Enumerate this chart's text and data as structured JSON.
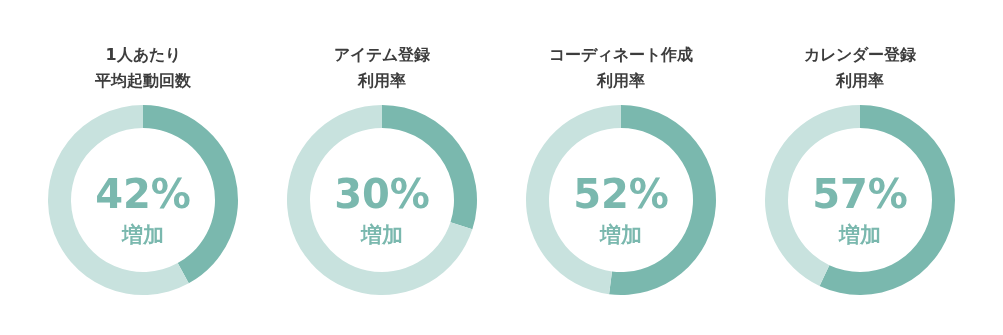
{
  "chart_data": [
    {
      "type": "donut",
      "title": "1人あたり",
      "subtitle": "平均起動回数",
      "categories": [
        null,
        null
      ],
      "values": [
        42,
        58
      ],
      "colors": [
        "#7ab8ae",
        "#c8e2de"
      ],
      "value_labels": [
        "42%",
        null
      ],
      "annotations": [
        "増加"
      ]
    },
    {
      "type": "donut",
      "title": "アイテム登録",
      "subtitle": "利用率",
      "categories": [
        null,
        null
      ],
      "values": [
        30,
        70
      ],
      "colors": [
        "#7ab8ae",
        "#c8e2de"
      ],
      "value_labels": [
        "30%",
        null
      ],
      "annotations": [
        "増加"
      ]
    },
    {
      "type": "donut",
      "title": "コーディネート作成",
      "subtitle": "利用率",
      "categories": [
        null,
        null
      ],
      "values": [
        52,
        48
      ],
      "colors": [
        "#7ab8ae",
        "#c8e2de"
      ],
      "value_labels": [
        "52%",
        null
      ],
      "annotations": [
        "増加"
      ]
    },
    {
      "type": "donut",
      "title": "カレンダー登録",
      "subtitle": "利用率",
      "categories": [
        null,
        null
      ],
      "values": [
        57,
        43
      ],
      "colors": [
        "#7ab8ae",
        "#c8e2de"
      ],
      "value_labels": [
        "57%",
        null
      ],
      "annotations": [
        "増加"
      ]
    }
  ]
}
